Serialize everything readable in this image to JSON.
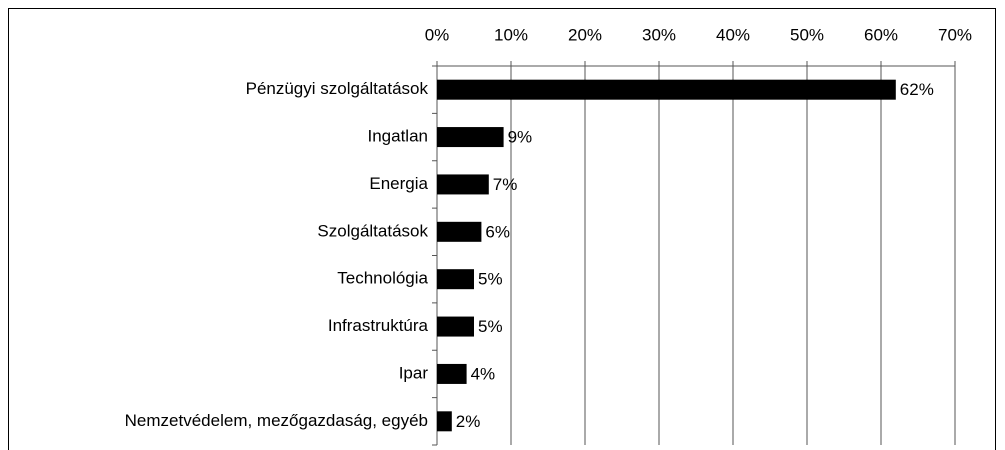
{
  "chart_data": {
    "type": "bar",
    "orientation": "horizontal",
    "categories": [
      "Pénzügyi szolgáltatások",
      "Ingatlan",
      "Energia",
      "Szolgáltatások",
      "Technológia",
      "Infrastruktúra",
      "Ipar",
      "Nemzetvédelem, mezőgazdaság, egyéb"
    ],
    "values": [
      62,
      9,
      7,
      6,
      5,
      5,
      4,
      2
    ],
    "value_labels": [
      "62%",
      "9%",
      "7%",
      "6%",
      "5%",
      "5%",
      "4%",
      "2%"
    ],
    "color": "#000000",
    "xlim": [
      0,
      70
    ],
    "xticks": [
      {
        "value": 0,
        "label": "0%"
      },
      {
        "value": 10,
        "label": "10%"
      },
      {
        "value": 20,
        "label": "20%"
      },
      {
        "value": 30,
        "label": "30%"
      },
      {
        "value": 40,
        "label": "40%"
      },
      {
        "value": 50,
        "label": "50%"
      },
      {
        "value": 60,
        "label": "60%"
      },
      {
        "value": 70,
        "label": "70%"
      }
    ],
    "grid": true
  }
}
